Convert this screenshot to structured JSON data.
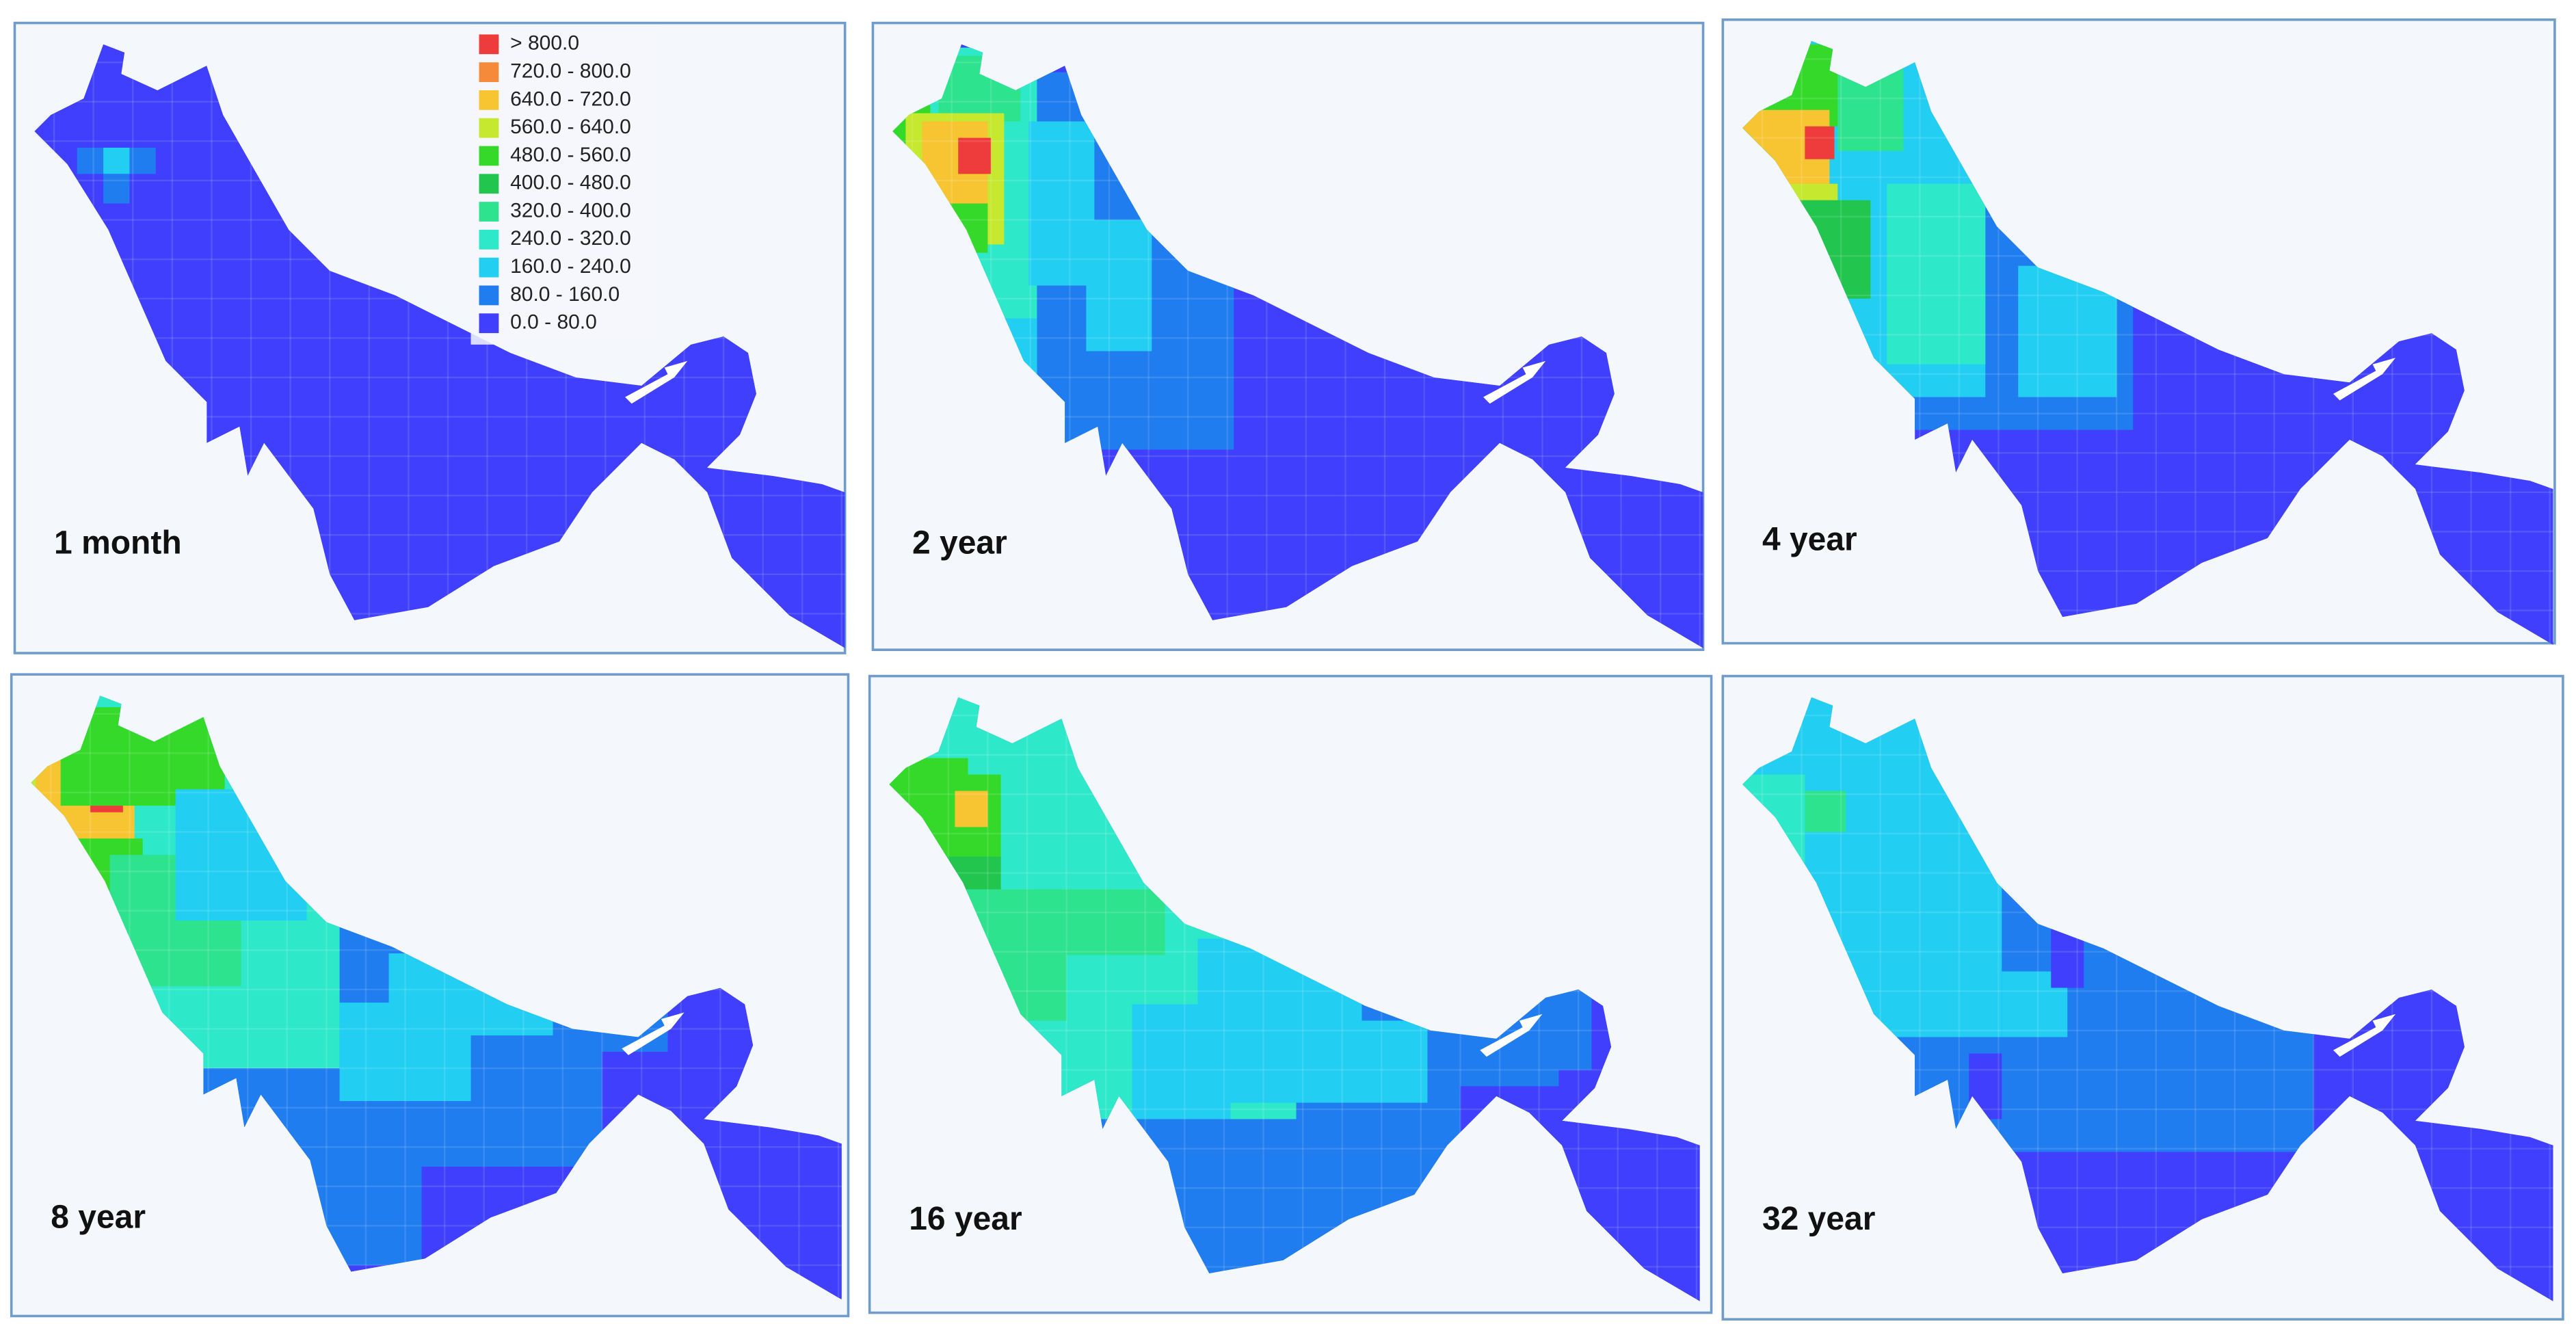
{
  "legend": {
    "items": [
      {
        "label": "> 800.0",
        "color": "#ee3b3b"
      },
      {
        "label": "720.0 - 800.0",
        "color": "#f58a3a"
      },
      {
        "label": "640.0 - 720.0",
        "color": "#f7c532"
      },
      {
        "label": "560.0 - 640.0",
        "color": "#c6e82e"
      },
      {
        "label": "480.0 - 560.0",
        "color": "#34d92a"
      },
      {
        "label": "400.0 - 480.0",
        "color": "#22c54e"
      },
      {
        "label": "320.0 - 400.0",
        "color": "#2ee38e"
      },
      {
        "label": "240.0 - 320.0",
        "color": "#2ee9c9"
      },
      {
        "label": "160.0 - 240.0",
        "color": "#22cff2"
      },
      {
        "label": "80.0 - 160.0",
        "color": "#1f7df0"
      },
      {
        "label": "0.0 - 80.0",
        "color": "#3f3ffd"
      }
    ]
  },
  "panels": [
    {
      "label": "1 month"
    },
    {
      "label": "2 year"
    },
    {
      "label": "4 year"
    },
    {
      "label": "8 year"
    },
    {
      "label": "16 year"
    },
    {
      "label": "32 year"
    }
  ]
}
